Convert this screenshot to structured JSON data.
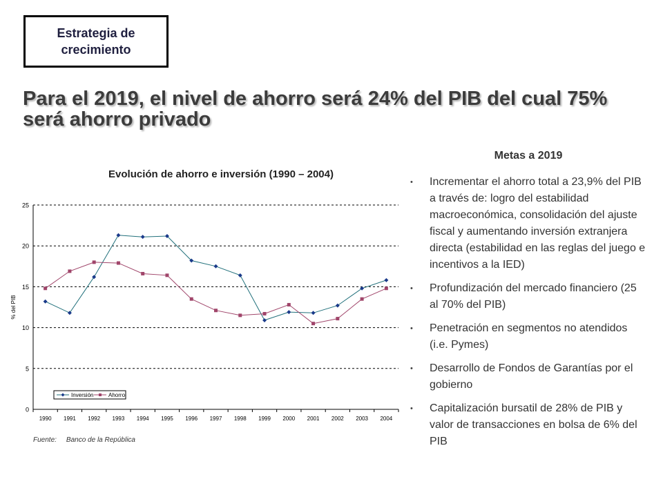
{
  "tag": {
    "label": "Estrategia de crecimiento"
  },
  "headline": "Para el 2019, el nivel de ahorro será 24% del PIB del cual 75% será ahorro privado",
  "source": {
    "label": "Fuente:",
    "value": "Banco de la República"
  },
  "goals": {
    "title": "Metas a 2019",
    "items": [
      "Incrementar el ahorro total a 23,9% del PIB a través de: logro del estabilidad macroeconómica, consolidación del ajuste fiscal y aumentando inversión extranjera directa (estabilidad en las reglas del juego e incentivos a la IED)",
      "Profundización del mercado financiero (25 al 70% del PIB)",
      "Penetración en segmentos no atendidos (i.e. Pymes)",
      "Desarrollo de Fondos de Garantías por el gobierno",
      "Capitalización bursatil de 28% de PIB y valor de transacciones en bolsa de 6% del PIB"
    ]
  },
  "chart_data": {
    "type": "line",
    "title": "Evolución de ahorro e inversión (1990 – 2004)",
    "xlabel": "",
    "ylabel": "% del PIB",
    "categories": [
      "1990",
      "1991",
      "1992",
      "1993",
      "1994",
      "1995",
      "1996",
      "1997",
      "1998",
      "1999",
      "2000",
      "2001",
      "2002",
      "2003",
      "2004"
    ],
    "ylim": [
      0,
      25
    ],
    "yticks": [
      0,
      5,
      10,
      15,
      20,
      25
    ],
    "grid": true,
    "legend": "bottom-left",
    "series": [
      {
        "name": "Inversión",
        "color": "#1f6f7a",
        "marker": "diamond",
        "values": [
          13.2,
          11.8,
          16.2,
          21.3,
          21.1,
          21.2,
          18.2,
          17.5,
          16.4,
          10.9,
          11.9,
          11.8,
          12.7,
          14.8,
          15.8
        ]
      },
      {
        "name": "Ahorro",
        "color": "#a0456a",
        "marker": "square",
        "values": [
          14.8,
          16.9,
          18.0,
          17.9,
          16.6,
          16.4,
          13.5,
          12.1,
          11.5,
          11.7,
          12.8,
          10.5,
          11.1,
          13.5,
          14.8
        ]
      }
    ]
  }
}
